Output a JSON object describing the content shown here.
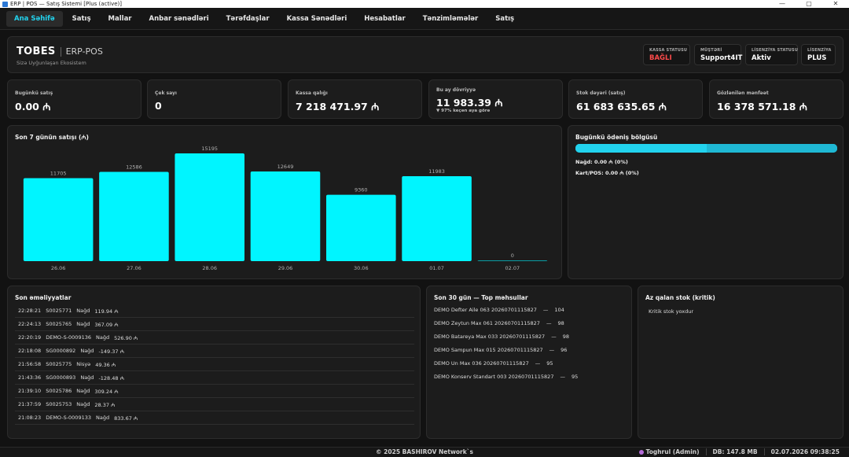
{
  "window": {
    "title": "ERP | POS — Satış Sistemi [Plus (active)]",
    "minimize": "—",
    "maximize": "▢",
    "close": "✕"
  },
  "nav": {
    "tabs": [
      {
        "label": "Ana Səhifə",
        "active": true
      },
      {
        "label": "Satış"
      },
      {
        "label": "Mallar"
      },
      {
        "label": "Anbar sənədləri"
      },
      {
        "label": "Tərəfdaşlar"
      },
      {
        "label": "Kassa Sənədləri"
      },
      {
        "label": "Hesabatlar"
      },
      {
        "label": "Tənzimləmələr"
      },
      {
        "label": "Satış"
      }
    ]
  },
  "header": {
    "brand": "TOBES",
    "product": "ERP-POS",
    "tagline": "Sizə Uyğunlaşan Ekosistem",
    "status": [
      {
        "label": "KASSA STATUSU",
        "value": "BAĞLI",
        "color": "#ff4b4b"
      },
      {
        "label": "MÜŞTƏRİ",
        "value": "Support4IT"
      },
      {
        "label": "LİSENZİYA STATUSU",
        "value": "Aktiv"
      },
      {
        "label": "LİSENZİYA",
        "value": "PLUS"
      }
    ]
  },
  "kpis": [
    {
      "label": "Bugünkü satış",
      "value": "0.00 ₼"
    },
    {
      "label": "Çek sayı",
      "value": "0"
    },
    {
      "label": "Kassa qalığı",
      "value": "7 218 471.97 ₼"
    },
    {
      "label": "Bu ay dövriyyə",
      "value": "11 983.39 ₼",
      "sub": "▼ 97% keçən aya görə"
    },
    {
      "label": "Stok dəyəri (satış)",
      "value": "61 683 635.65 ₼"
    },
    {
      "label": "Gözlənilən mənfəət",
      "value": "16 378 571.18 ₼"
    }
  ],
  "sales_chart": {
    "title": "Son 7 günün satışı (₼)",
    "bar_color": "#00f5ff"
  },
  "chart_data": {
    "type": "bar",
    "title": "Son 7 günün satışı (₼)",
    "categories": [
      "26.06",
      "27.06",
      "28.06",
      "29.06",
      "30.06",
      "01.07",
      "02.07"
    ],
    "values": [
      11705,
      12586,
      15195,
      12649,
      9360,
      11983,
      0
    ],
    "ylim": [
      0,
      15195
    ],
    "grid": false,
    "legend": "none"
  },
  "payment": {
    "title": "Bugünkü ödəniş bölgüsü",
    "cash_label": "Nağd: 0.00 ₼  (0%)",
    "card_label": "Kart/POS: 0.00 ₼  (0%)",
    "cash_fraction": 0.5,
    "color": "#22d3ee"
  },
  "recent": {
    "title": "Son əməliyyatlar",
    "rows": [
      {
        "time": "22:28:21",
        "doc": "S0025771",
        "type": "Nağd",
        "amount": "119.94 ₼"
      },
      {
        "time": "22:24:13",
        "doc": "S0025765",
        "type": "Nağd",
        "amount": "367.09 ₼"
      },
      {
        "time": "22:20:19",
        "doc": "DEMO-S-0009136",
        "type": "Nağd",
        "amount": "526.90 ₼"
      },
      {
        "time": "22:18:08",
        "doc": "SG0000892",
        "type": "Nağd",
        "amount": "-149.37 ₼"
      },
      {
        "time": "21:56:58",
        "doc": "S0025775",
        "type": "Nisyə",
        "amount": "49.36 ₼"
      },
      {
        "time": "21:43:36",
        "doc": "SG0000893",
        "type": "Nağd",
        "amount": "-128.48 ₼"
      },
      {
        "time": "21:39:10",
        "doc": "S0025786",
        "type": "Nağd",
        "amount": "309.24 ₼"
      },
      {
        "time": "21:37:59",
        "doc": "S0025753",
        "type": "Nağd",
        "amount": "28.37 ₼"
      },
      {
        "time": "21:08:23",
        "doc": "DEMO-S-0009133",
        "type": "Nağd",
        "amount": "833.67 ₼"
      }
    ]
  },
  "top_products": {
    "title": "Son 30 gün — Top məhsullar",
    "rows": [
      {
        "name": "DEMO Defter Aile 063 20260701115827",
        "dash": "—",
        "qty": "104"
      },
      {
        "name": "DEMO Zeytun Max 061 20260701115827",
        "dash": "—",
        "qty": "98"
      },
      {
        "name": "DEMO Batareya Max 033 20260701115827",
        "dash": "—",
        "qty": "98"
      },
      {
        "name": "DEMO Sampun Max 015 20260701115827",
        "dash": "—",
        "qty": "96"
      },
      {
        "name": "DEMO Un Max 036 20260701115827",
        "dash": "—",
        "qty": "95"
      },
      {
        "name": "DEMO Konserv Standart 003 20260701115827",
        "dash": "—",
        "qty": "95"
      }
    ]
  },
  "low_stock": {
    "title": "Az qalan stok (kritik)",
    "empty": "Kritik stok yoxdur"
  },
  "footer": {
    "copyright": "© 2025 BASHIROV Network`s",
    "user": "Toghrul (Admin)",
    "db": "DB: 147.8 MB",
    "datetime": "02.07.2026  09:38:25"
  }
}
